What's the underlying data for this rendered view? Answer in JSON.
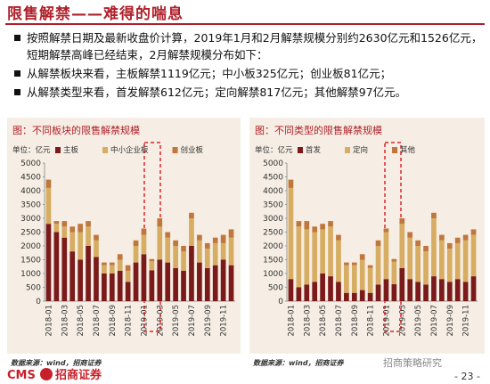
{
  "header": {
    "title": "限售解禁——难得的喘息"
  },
  "bullets": [
    "按照解禁日期及最新收盘价计算，2019年1月和2月解禁规模分别约2630亿元和1526亿元，短期解禁高峰已经结束，2月解禁规模分布如下：",
    "从解禁板块来看，主板解禁1119亿元；中小板325亿元；创业板81亿元；",
    "从解禁类型来看，首发解禁612亿元；定向解禁817亿元；其他解禁97亿元。"
  ],
  "chart_data": [
    {
      "type": "stacked_bar",
      "title": "图：不同板块的限售解禁规模",
      "y_label": "单位：亿元",
      "source": "数据来源：wind，招商证券",
      "categories": [
        "2018-01",
        null,
        "2018-03",
        null,
        "2018-05",
        null,
        "2018-07",
        null,
        "2018-09",
        null,
        "2018-11",
        null,
        "2019-01",
        null,
        "2019-03",
        null,
        "2019-05",
        null,
        "2019-07",
        null,
        "2019-09",
        null,
        "2019-11",
        null
      ],
      "series": [
        {
          "name": "主板",
          "color": "#7a1a1a",
          "values": [
            2800,
            2500,
            2300,
            1800,
            1500,
            2000,
            1600,
            1000,
            1000,
            1100,
            700,
            1400,
            1700,
            1119,
            1500,
            1400,
            1200,
            1100,
            2000,
            1400,
            1200,
            1300,
            1500,
            1300
          ]
        },
        {
          "name": "中小企业板",
          "color": "#d6ad62",
          "values": [
            1300,
            300,
            400,
            700,
            1000,
            700,
            600,
            300,
            300,
            400,
            400,
            600,
            700,
            325,
            1200,
            900,
            800,
            700,
            1000,
            800,
            700,
            800,
            600,
            1000
          ]
        },
        {
          "name": "创业板",
          "color": "#bf773e",
          "values": [
            300,
            100,
            200,
            200,
            300,
            200,
            200,
            100,
            100,
            200,
            200,
            200,
            230,
            81,
            300,
            200,
            200,
            200,
            200,
            200,
            200,
            200,
            300,
            300
          ]
        }
      ],
      "ylim": [
        0,
        5000
      ],
      "yticks": [
        0,
        500,
        1000,
        1500,
        2000,
        2500,
        3000,
        3500,
        4000,
        4500,
        5000
      ]
    },
    {
      "type": "stacked_bar",
      "title": "图：不同类型的限售解禁规模",
      "y_label": "单位：亿元",
      "source": "数据来源：wind，招商证券",
      "categories": [
        "2018-01",
        null,
        "2018-03",
        null,
        "2018-05",
        null,
        "2018-07",
        null,
        "2018-09",
        null,
        "2018-11",
        null,
        "2019-01",
        null,
        "2019-03",
        null,
        "2019-05",
        null,
        "2019-07",
        null,
        "2019-09",
        null,
        "2019-11",
        null
      ],
      "series": [
        {
          "name": "首发",
          "color": "#7a1a1a",
          "values": [
            800,
            500,
            600,
            700,
            1000,
            900,
            700,
            300,
            300,
            400,
            300,
            600,
            800,
            612,
            1200,
            800,
            700,
            600,
            900,
            800,
            700,
            800,
            700,
            900
          ]
        },
        {
          "name": "定向",
          "color": "#d6ad62",
          "values": [
            3300,
            2200,
            2000,
            1800,
            1600,
            1800,
            1500,
            1000,
            1000,
            1100,
            900,
            1400,
            1700,
            817,
            1600,
            1500,
            1300,
            1200,
            2100,
            1400,
            1200,
            1300,
            1500,
            1500
          ]
        },
        {
          "name": "其他",
          "color": "#bf773e",
          "values": [
            300,
            200,
            300,
            200,
            200,
            200,
            200,
            100,
            100,
            200,
            100,
            200,
            130,
            97,
            200,
            200,
            200,
            200,
            200,
            200,
            200,
            200,
            200,
            200
          ]
        }
      ],
      "ylim": [
        0,
        5000
      ],
      "yticks": [
        0,
        500,
        1000,
        1500,
        2000,
        2500,
        3000,
        3500,
        4000,
        4500,
        5000
      ]
    }
  ],
  "footer": {
    "logo": "CMS",
    "company": "招商证券",
    "watermark": "招商策略研究",
    "page": "- 23 -"
  }
}
